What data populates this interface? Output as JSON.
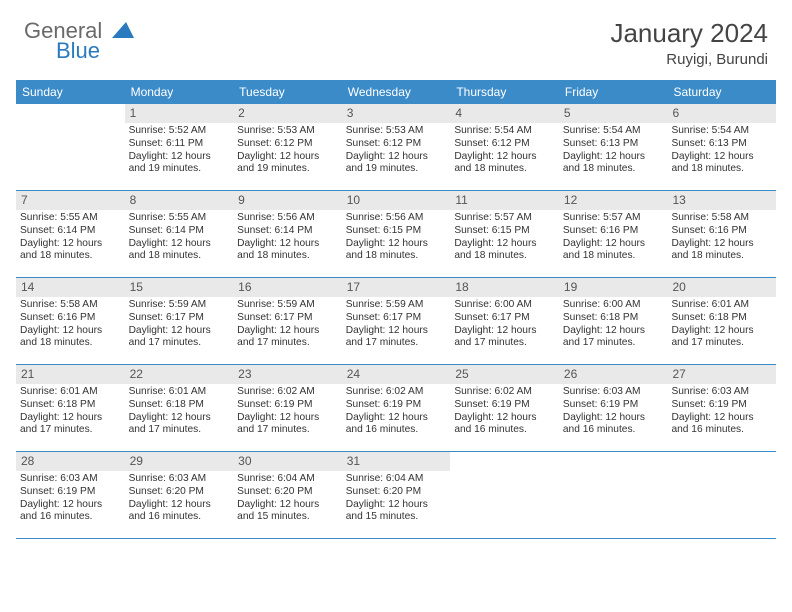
{
  "brand": {
    "part1": "General",
    "part2": "Blue"
  },
  "title": "January 2024",
  "location": "Ruyigi, Burundi",
  "colors": {
    "header_bg": "#3b8bc9",
    "header_text": "#ffffff",
    "rule": "#3b8bc9",
    "daynum_bg": "#e9e9e9",
    "text": "#333333",
    "brand_gray": "#6a6a6a",
    "brand_blue": "#2a7abf"
  },
  "day_headers": [
    "Sunday",
    "Monday",
    "Tuesday",
    "Wednesday",
    "Thursday",
    "Friday",
    "Saturday"
  ],
  "weeks": [
    [
      {
        "blank": true
      },
      {
        "n": "1",
        "sunrise": "5:52 AM",
        "sunset": "6:11 PM",
        "dl1": "Daylight: 12 hours",
        "dl2": "and 19 minutes."
      },
      {
        "n": "2",
        "sunrise": "5:53 AM",
        "sunset": "6:12 PM",
        "dl1": "Daylight: 12 hours",
        "dl2": "and 19 minutes."
      },
      {
        "n": "3",
        "sunrise": "5:53 AM",
        "sunset": "6:12 PM",
        "dl1": "Daylight: 12 hours",
        "dl2": "and 19 minutes."
      },
      {
        "n": "4",
        "sunrise": "5:54 AM",
        "sunset": "6:12 PM",
        "dl1": "Daylight: 12 hours",
        "dl2": "and 18 minutes."
      },
      {
        "n": "5",
        "sunrise": "5:54 AM",
        "sunset": "6:13 PM",
        "dl1": "Daylight: 12 hours",
        "dl2": "and 18 minutes."
      },
      {
        "n": "6",
        "sunrise": "5:54 AM",
        "sunset": "6:13 PM",
        "dl1": "Daylight: 12 hours",
        "dl2": "and 18 minutes."
      }
    ],
    [
      {
        "n": "7",
        "sunrise": "5:55 AM",
        "sunset": "6:14 PM",
        "dl1": "Daylight: 12 hours",
        "dl2": "and 18 minutes."
      },
      {
        "n": "8",
        "sunrise": "5:55 AM",
        "sunset": "6:14 PM",
        "dl1": "Daylight: 12 hours",
        "dl2": "and 18 minutes."
      },
      {
        "n": "9",
        "sunrise": "5:56 AM",
        "sunset": "6:14 PM",
        "dl1": "Daylight: 12 hours",
        "dl2": "and 18 minutes."
      },
      {
        "n": "10",
        "sunrise": "5:56 AM",
        "sunset": "6:15 PM",
        "dl1": "Daylight: 12 hours",
        "dl2": "and 18 minutes."
      },
      {
        "n": "11",
        "sunrise": "5:57 AM",
        "sunset": "6:15 PM",
        "dl1": "Daylight: 12 hours",
        "dl2": "and 18 minutes."
      },
      {
        "n": "12",
        "sunrise": "5:57 AM",
        "sunset": "6:16 PM",
        "dl1": "Daylight: 12 hours",
        "dl2": "and 18 minutes."
      },
      {
        "n": "13",
        "sunrise": "5:58 AM",
        "sunset": "6:16 PM",
        "dl1": "Daylight: 12 hours",
        "dl2": "and 18 minutes."
      }
    ],
    [
      {
        "n": "14",
        "sunrise": "5:58 AM",
        "sunset": "6:16 PM",
        "dl1": "Daylight: 12 hours",
        "dl2": "and 18 minutes."
      },
      {
        "n": "15",
        "sunrise": "5:59 AM",
        "sunset": "6:17 PM",
        "dl1": "Daylight: 12 hours",
        "dl2": "and 17 minutes."
      },
      {
        "n": "16",
        "sunrise": "5:59 AM",
        "sunset": "6:17 PM",
        "dl1": "Daylight: 12 hours",
        "dl2": "and 17 minutes."
      },
      {
        "n": "17",
        "sunrise": "5:59 AM",
        "sunset": "6:17 PM",
        "dl1": "Daylight: 12 hours",
        "dl2": "and 17 minutes."
      },
      {
        "n": "18",
        "sunrise": "6:00 AM",
        "sunset": "6:17 PM",
        "dl1": "Daylight: 12 hours",
        "dl2": "and 17 minutes."
      },
      {
        "n": "19",
        "sunrise": "6:00 AM",
        "sunset": "6:18 PM",
        "dl1": "Daylight: 12 hours",
        "dl2": "and 17 minutes."
      },
      {
        "n": "20",
        "sunrise": "6:01 AM",
        "sunset": "6:18 PM",
        "dl1": "Daylight: 12 hours",
        "dl2": "and 17 minutes."
      }
    ],
    [
      {
        "n": "21",
        "sunrise": "6:01 AM",
        "sunset": "6:18 PM",
        "dl1": "Daylight: 12 hours",
        "dl2": "and 17 minutes."
      },
      {
        "n": "22",
        "sunrise": "6:01 AM",
        "sunset": "6:18 PM",
        "dl1": "Daylight: 12 hours",
        "dl2": "and 17 minutes."
      },
      {
        "n": "23",
        "sunrise": "6:02 AM",
        "sunset": "6:19 PM",
        "dl1": "Daylight: 12 hours",
        "dl2": "and 17 minutes."
      },
      {
        "n": "24",
        "sunrise": "6:02 AM",
        "sunset": "6:19 PM",
        "dl1": "Daylight: 12 hours",
        "dl2": "and 16 minutes."
      },
      {
        "n": "25",
        "sunrise": "6:02 AM",
        "sunset": "6:19 PM",
        "dl1": "Daylight: 12 hours",
        "dl2": "and 16 minutes."
      },
      {
        "n": "26",
        "sunrise": "6:03 AM",
        "sunset": "6:19 PM",
        "dl1": "Daylight: 12 hours",
        "dl2": "and 16 minutes."
      },
      {
        "n": "27",
        "sunrise": "6:03 AM",
        "sunset": "6:19 PM",
        "dl1": "Daylight: 12 hours",
        "dl2": "and 16 minutes."
      }
    ],
    [
      {
        "n": "28",
        "sunrise": "6:03 AM",
        "sunset": "6:19 PM",
        "dl1": "Daylight: 12 hours",
        "dl2": "and 16 minutes."
      },
      {
        "n": "29",
        "sunrise": "6:03 AM",
        "sunset": "6:20 PM",
        "dl1": "Daylight: 12 hours",
        "dl2": "and 16 minutes."
      },
      {
        "n": "30",
        "sunrise": "6:04 AM",
        "sunset": "6:20 PM",
        "dl1": "Daylight: 12 hours",
        "dl2": "and 15 minutes."
      },
      {
        "n": "31",
        "sunrise": "6:04 AM",
        "sunset": "6:20 PM",
        "dl1": "Daylight: 12 hours",
        "dl2": "and 15 minutes."
      },
      {
        "blank": true
      },
      {
        "blank": true
      },
      {
        "blank": true
      }
    ]
  ],
  "labels": {
    "sunrise": "Sunrise:",
    "sunset": "Sunset:"
  }
}
